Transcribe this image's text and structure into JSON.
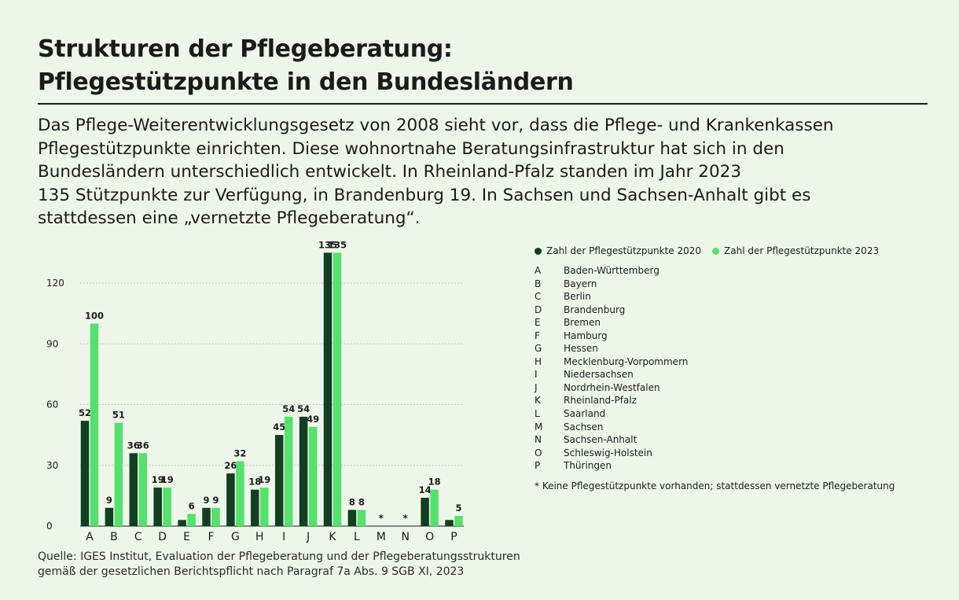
{
  "title_line1": "Strukturen der Pflegeberatung:",
  "title_line2": "Pflegestützpunkte in den Bundesländern",
  "lead": "Das Pflege-Weiterentwicklungsgesetz von 2008 sieht vor, dass die Pflege- und Krankenkassen\nPflegestützpunkte einrichten. Diese wohnortnahe Beratungsinfrastruktur hat sich in den\nBundesländern unterschiedlich entwickelt. In Rheinland-Pfalz standen im Jahr 2023\n135 Stützpunkte zur Verfügung, in Brandenburg 19. In Sachsen und Sachsen-Anhalt gibt es\nstattdessen eine „vernetzte Pflegeberatung“.",
  "legend": {
    "categories": [
      {
        "key": "A",
        "name": "Baden-Württemberg"
      },
      {
        "key": "B",
        "name": "Bayern"
      },
      {
        "key": "C",
        "name": "Berlin"
      },
      {
        "key": "D",
        "name": "Brandenburg"
      },
      {
        "key": "E",
        "name": "Bremen"
      },
      {
        "key": "F",
        "name": "Hamburg"
      },
      {
        "key": "G",
        "name": "Hessen"
      },
      {
        "key": "H",
        "name": "Mecklenburg-Vorpommern"
      },
      {
        "key": "I",
        "name": "Niedersachsen"
      },
      {
        "key": "J",
        "name": "Nordrhein-Westfalen"
      },
      {
        "key": "K",
        "name": "Rheinland-Pfalz"
      },
      {
        "key": "L",
        "name": "Saarland"
      },
      {
        "key": "M",
        "name": "Sachsen"
      },
      {
        "key": "N",
        "name": "Sachsen-Anhalt"
      },
      {
        "key": "O",
        "name": "Schleswig-Holstein"
      },
      {
        "key": "P",
        "name": "Thüringen"
      }
    ],
    "footnote": "* Keine Pflegestützpunkte vorhanden; stattdessen vernetzte Pflegeberatung"
  },
  "source": "Quelle: IGES Institut, Evaluation der Pflegeberatung und der Pflegeberatungsstrukturen\ngemäß der gesetzlichen Berichtspflicht nach Paragraf 7a Abs. 9 SGB XI, 2023",
  "chart_data": {
    "type": "bar",
    "categories": [
      "A",
      "B",
      "C",
      "D",
      "E",
      "F",
      "G",
      "H",
      "I",
      "J",
      "K",
      "L",
      "M",
      "N",
      "O",
      "P"
    ],
    "series": [
      {
        "name": "Zahl der Pflegestützpunkte 2020",
        "color": "#123e22",
        "values": [
          52,
          9,
          36,
          19,
          3,
          9,
          26,
          18,
          45,
          54,
          135,
          8,
          null,
          null,
          14,
          3
        ],
        "labels": [
          "52",
          "9",
          "36",
          "19",
          "",
          "9",
          "26",
          "18",
          "45",
          "54",
          "135",
          "8",
          "",
          "",
          "14",
          ""
        ]
      },
      {
        "name": "Zahl der Pflegestützpunkte 2023",
        "color": "#56e06d",
        "values": [
          100,
          51,
          36,
          19,
          6,
          9,
          32,
          19,
          54,
          49,
          135,
          8,
          null,
          null,
          18,
          5
        ],
        "labels": [
          "100",
          "51",
          "36",
          "19",
          "6",
          "9",
          "32",
          "19",
          "54",
          "49",
          "135",
          "8",
          "",
          "",
          "18",
          "5"
        ]
      }
    ],
    "missing_marker": [
      "",
      "",
      "",
      "",
      "",
      "",
      "",
      "",
      "",
      "",
      "",
      "",
      "*",
      "*",
      "",
      ""
    ],
    "yticks": [
      "0",
      "30",
      "60",
      "90",
      "120"
    ],
    "ylim": [
      0,
      120
    ],
    "grid": true,
    "legend_position": "top-right"
  }
}
